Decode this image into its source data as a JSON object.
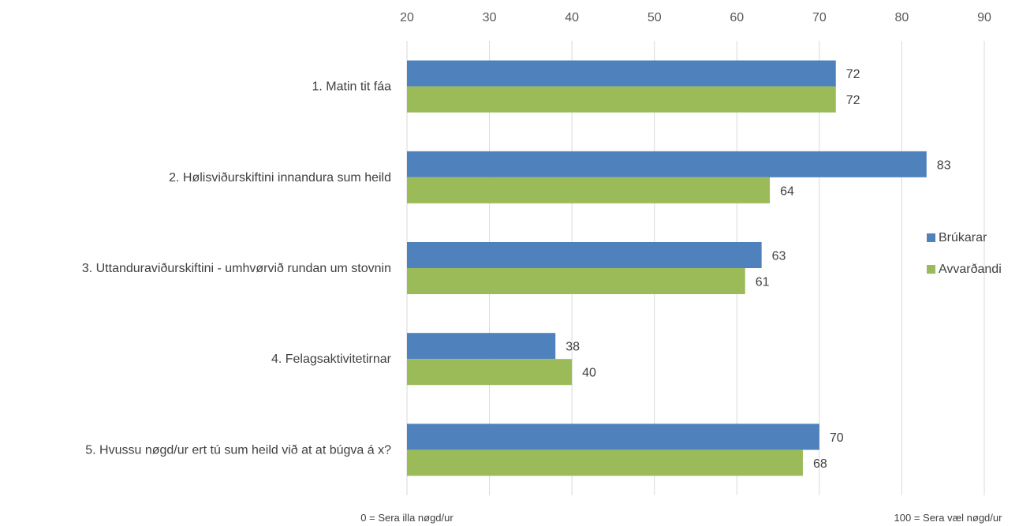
{
  "chart_data": {
    "type": "bar",
    "orientation": "horizontal",
    "categories": [
      "1. Matin tit fáa",
      "2. Hølisviðurskiftini innandura sum heild",
      "3. Uttanduraviðurskiftini - umhvørvið rundan um stovnin",
      "4. Felagsaktivitetirnar",
      "5. Hvussu nøgd/ur ert tú sum heild við at at búgva á x?"
    ],
    "series": [
      {
        "name": "Brúkarar",
        "values": [
          72,
          83,
          63,
          38,
          70
        ],
        "color": "#4f81bd"
      },
      {
        "name": "Avvarðandi",
        "values": [
          72,
          64,
          61,
          40,
          68
        ],
        "color": "#9bbb59"
      }
    ],
    "xlim": [
      20,
      90
    ],
    "xticks": [
      20,
      30,
      40,
      50,
      60,
      70,
      80,
      90
    ],
    "axis_position": "top",
    "grid": true,
    "gridline_color": "#d9d9d9",
    "legend_position": "right",
    "scale_note_left": "0 = Sera illa nøgd/ur",
    "scale_note_right": "100 = Sera væl nøgd/ur"
  }
}
